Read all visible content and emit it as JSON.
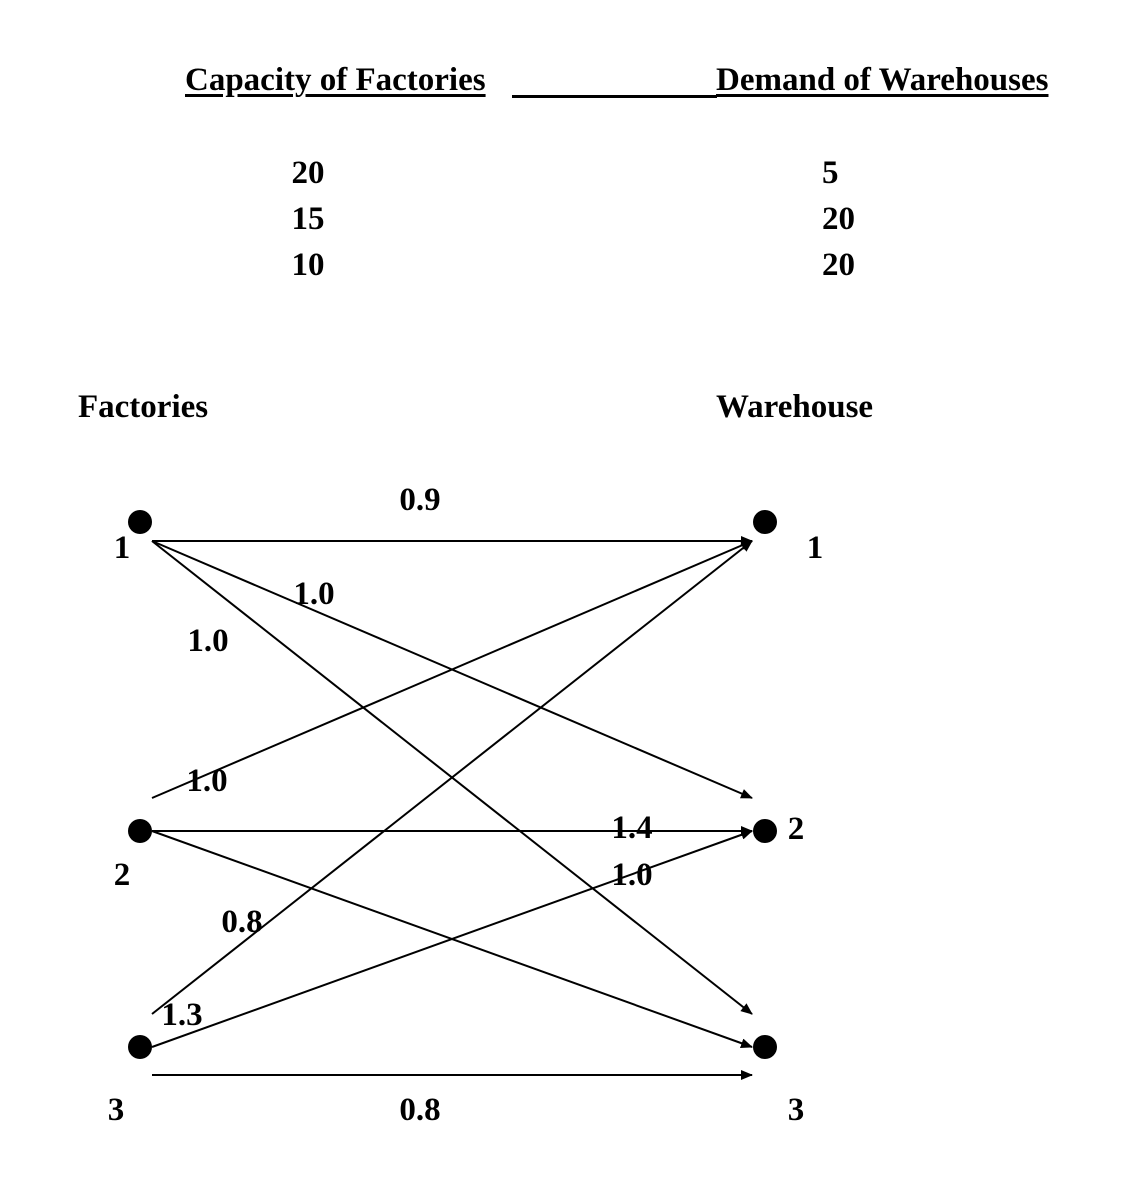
{
  "tables": {
    "capacity_header": "Capacity of Factories",
    "demand_header": "Demand of Warehouses",
    "capacities": [
      "20",
      "15",
      "10"
    ],
    "demands": [
      "5",
      "20",
      "20"
    ]
  },
  "network": {
    "factories_title": "Factories",
    "warehouse_title": "Warehouse",
    "factories": [
      {
        "id": "1",
        "label": "1"
      },
      {
        "id": "2",
        "label": "2"
      },
      {
        "id": "3",
        "label": "3"
      }
    ],
    "warehouses": [
      {
        "id": "1",
        "label": "1"
      },
      {
        "id": "2",
        "label": "2"
      },
      {
        "id": "3",
        "label": "3"
      }
    ],
    "edges": [
      {
        "from": "1",
        "to": "1",
        "cost": "0.9"
      },
      {
        "from": "1",
        "to": "2",
        "cost": "1.0"
      },
      {
        "from": "1",
        "to": "3",
        "cost": "1.0"
      },
      {
        "from": "2",
        "to": "1",
        "cost": "1.0"
      },
      {
        "from": "2",
        "to": "2",
        "cost": "1.4"
      },
      {
        "from": "2",
        "to": "3",
        "cost": "1.0"
      },
      {
        "from": "3",
        "to": "1",
        "cost": "0.8"
      },
      {
        "from": "3",
        "to": "2",
        "cost": "1.3"
      },
      {
        "from": "3",
        "to": "3",
        "cost": "0.8"
      }
    ]
  }
}
